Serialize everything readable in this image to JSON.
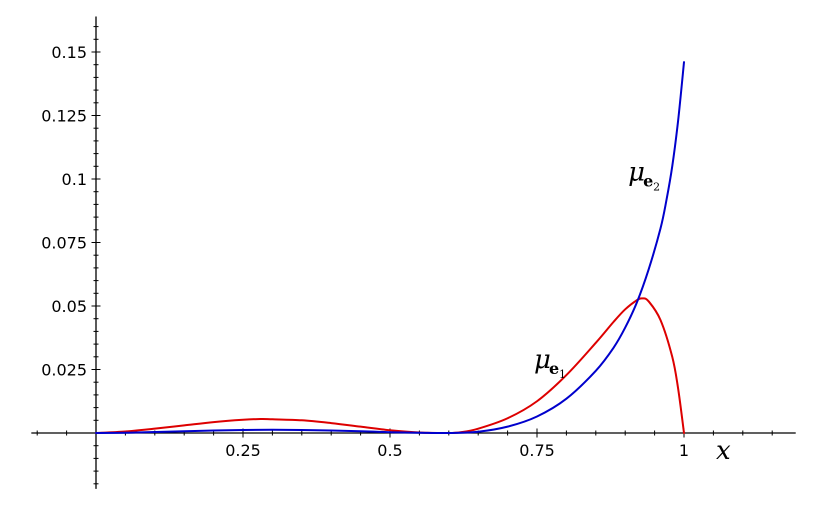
{
  "chart_data": {
    "type": "line",
    "title": "",
    "xlabel": "x",
    "ylabel": "",
    "xlim": [
      -0.11,
      1.19
    ],
    "ylim": [
      -0.022,
      0.164
    ],
    "x_ticks": [
      0.25,
      0.5,
      0.75,
      1
    ],
    "x_tick_labels": [
      "0.25",
      "0.5",
      "0.75",
      "1"
    ],
    "y_ticks": [
      0.025,
      0.05,
      0.075,
      0.1,
      0.125,
      0.15
    ],
    "y_tick_labels": [
      "0.025",
      "0.05",
      "0.075",
      "0.1",
      "0.125",
      "0.15"
    ],
    "grid": false,
    "legend": "none",
    "series": [
      {
        "label": {
          "base": "μ",
          "sub": "e",
          "subsub": "1"
        },
        "color": "#dd0000",
        "x": [
          0,
          0.05,
          0.1,
          0.15,
          0.2,
          0.25,
          0.28,
          0.3,
          0.35,
          0.4,
          0.45,
          0.5,
          0.55,
          0.6,
          0.62,
          0.65,
          0.7,
          0.75,
          0.8,
          0.85,
          0.88,
          0.9,
          0.92,
          0.93,
          0.94,
          0.96,
          0.98,
          0.99,
          1
        ],
        "y": [
          0,
          0.0006,
          0.0017,
          0.003,
          0.0043,
          0.0052,
          0.0055,
          0.0054,
          0.005,
          0.0039,
          0.0025,
          0.0011,
          0.0002,
          0,
          0.0003,
          0.0017,
          0.0058,
          0.0125,
          0.0228,
          0.0355,
          0.0437,
          0.0487,
          0.0523,
          0.053,
          0.0518,
          0.0445,
          0.03,
          0.0175,
          0
        ]
      },
      {
        "label": {
          "base": "μ",
          "sub": "e",
          "subsub": "2"
        },
        "color": "#0000cc",
        "x": [
          0,
          0.05,
          0.1,
          0.15,
          0.2,
          0.25,
          0.3,
          0.35,
          0.4,
          0.45,
          0.5,
          0.55,
          0.6,
          0.65,
          0.7,
          0.75,
          0.8,
          0.85,
          0.88,
          0.9,
          0.92,
          0.94,
          0.96,
          0.97,
          0.98,
          0.99,
          1
        ],
        "y": [
          0,
          0.0001,
          0.0004,
          0.0007,
          0.001,
          0.0012,
          0.0013,
          0.0012,
          0.001,
          0.0007,
          0.0003,
          0.0001,
          0,
          0.0005,
          0.0025,
          0.0065,
          0.0135,
          0.0245,
          0.0335,
          0.0415,
          0.0515,
          0.0645,
          0.0805,
          0.0915,
          0.105,
          0.123,
          0.146
        ]
      }
    ],
    "annotations": [
      {
        "series": 0,
        "at_x": 0.745,
        "at_y": 0.0255
      },
      {
        "series": 1,
        "at_x": 0.905,
        "at_y": 0.0995
      }
    ]
  }
}
